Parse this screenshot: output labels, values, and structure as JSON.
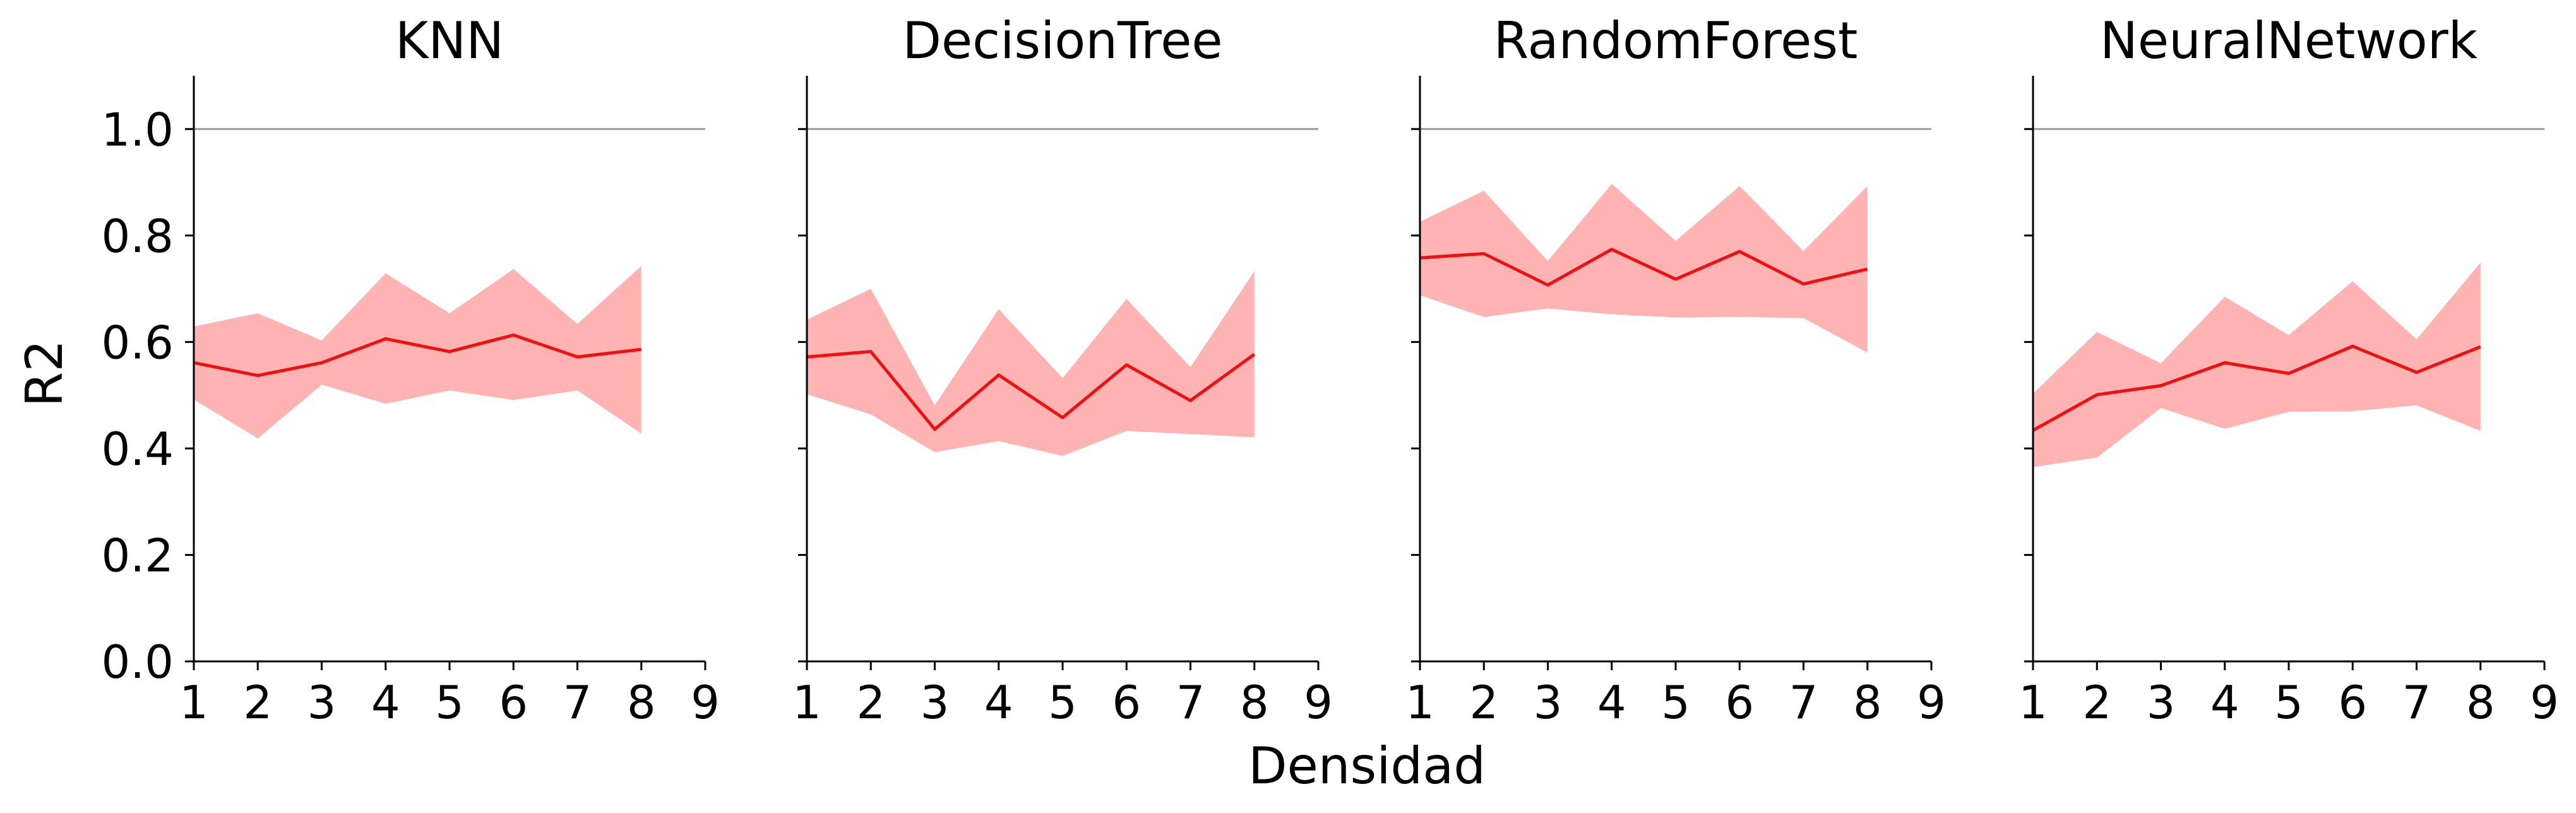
{
  "figure": {
    "xlabel": "Densidad",
    "ylabel": "R2"
  },
  "colors": {
    "line": "#ee1111",
    "band": "#ffb3b3",
    "reference": "#999999",
    "axis": "#000000"
  },
  "chart_data": [
    {
      "type": "line",
      "title": "KNN",
      "x": [
        1,
        2,
        3,
        4,
        5,
        6,
        7,
        8
      ],
      "xlim": [
        1,
        9
      ],
      "ylim": [
        0.0,
        1.1
      ],
      "xticks": [
        1,
        2,
        3,
        4,
        5,
        6,
        7,
        8,
        9
      ],
      "yticks": [
        0.0,
        0.2,
        0.4,
        0.6,
        0.8,
        1.0
      ],
      "reference_line": 1.0,
      "series": [
        {
          "values": [
            0.561,
            0.537,
            0.561,
            0.606,
            0.582,
            0.613,
            0.572,
            0.586
          ],
          "lower": [
            0.492,
            0.419,
            0.52,
            0.484,
            0.509,
            0.491,
            0.509,
            0.428
          ],
          "upper": [
            0.629,
            0.654,
            0.603,
            0.729,
            0.654,
            0.737,
            0.634,
            0.743
          ]
        }
      ]
    },
    {
      "type": "line",
      "title": "DecisionTree",
      "x": [
        1,
        2,
        3,
        4,
        5,
        6,
        7,
        8
      ],
      "xlim": [
        1,
        9
      ],
      "ylim": [
        0.0,
        1.1
      ],
      "xticks": [
        1,
        2,
        3,
        4,
        5,
        6,
        7,
        8,
        9
      ],
      "yticks": [
        0.0,
        0.2,
        0.4,
        0.6,
        0.8,
        1.0
      ],
      "reference_line": 1.0,
      "series": [
        {
          "values": [
            0.572,
            0.582,
            0.436,
            0.538,
            0.458,
            0.557,
            0.49,
            0.577
          ],
          "lower": [
            0.502,
            0.464,
            0.393,
            0.414,
            0.386,
            0.433,
            0.427,
            0.421
          ],
          "upper": [
            0.642,
            0.7,
            0.481,
            0.662,
            0.532,
            0.681,
            0.553,
            0.733
          ]
        }
      ]
    },
    {
      "type": "line",
      "title": "RandomForest",
      "x": [
        1,
        2,
        3,
        4,
        5,
        6,
        7,
        8
      ],
      "xlim": [
        1,
        9
      ],
      "ylim": [
        0.0,
        1.1
      ],
      "xticks": [
        1,
        2,
        3,
        4,
        5,
        6,
        7,
        8,
        9
      ],
      "yticks": [
        0.0,
        0.2,
        0.4,
        0.6,
        0.8,
        1.0
      ],
      "reference_line": 1.0,
      "series": [
        {
          "values": [
            0.758,
            0.766,
            0.707,
            0.774,
            0.718,
            0.77,
            0.709,
            0.737
          ],
          "lower": [
            0.688,
            0.647,
            0.663,
            0.652,
            0.646,
            0.647,
            0.645,
            0.58
          ],
          "upper": [
            0.826,
            0.884,
            0.752,
            0.897,
            0.79,
            0.893,
            0.771,
            0.893
          ]
        }
      ]
    },
    {
      "type": "line",
      "title": "NeuralNetwork",
      "x": [
        1,
        2,
        3,
        4,
        5,
        6,
        7,
        8
      ],
      "xlim": [
        1,
        9
      ],
      "ylim": [
        0.0,
        1.1
      ],
      "xticks": [
        1,
        2,
        3,
        4,
        5,
        6,
        7,
        8,
        9
      ],
      "yticks": [
        0.0,
        0.2,
        0.4,
        0.6,
        0.8,
        1.0
      ],
      "reference_line": 1.0,
      "series": [
        {
          "values": [
            0.434,
            0.501,
            0.518,
            0.561,
            0.541,
            0.592,
            0.543,
            0.591
          ],
          "lower": [
            0.365,
            0.383,
            0.476,
            0.437,
            0.469,
            0.47,
            0.481,
            0.433
          ],
          "upper": [
            0.503,
            0.619,
            0.56,
            0.685,
            0.613,
            0.714,
            0.605,
            0.749
          ]
        }
      ]
    }
  ]
}
